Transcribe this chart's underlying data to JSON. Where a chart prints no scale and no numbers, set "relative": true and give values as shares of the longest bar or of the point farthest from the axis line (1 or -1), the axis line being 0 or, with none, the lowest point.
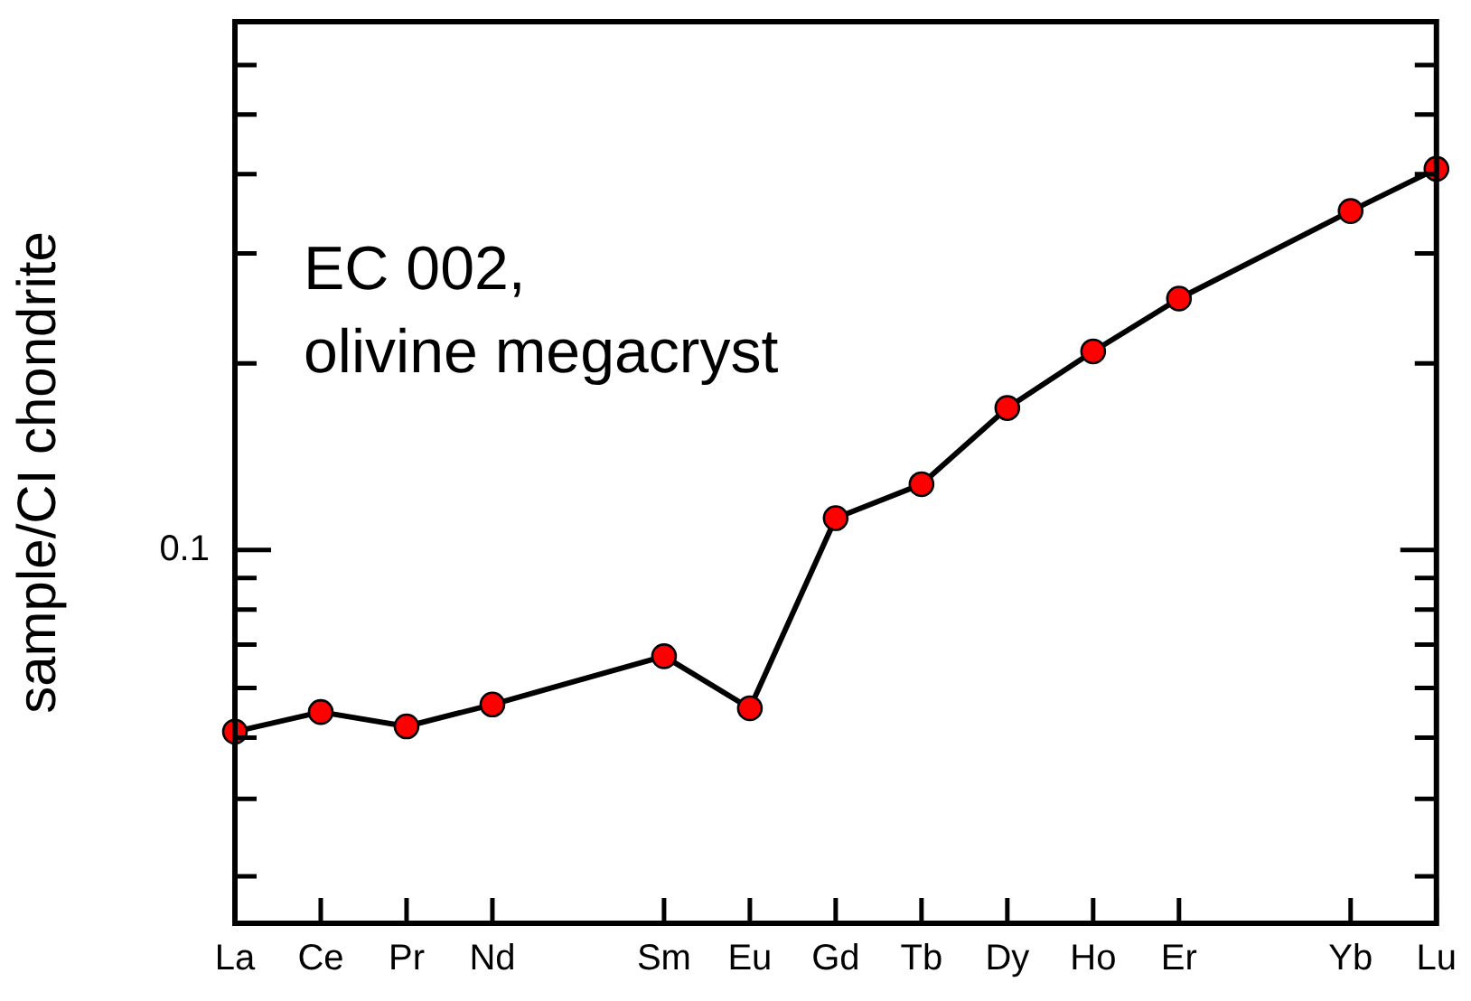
{
  "chart_data": {
    "type": "line",
    "ylabel": "sample/CI chondrite",
    "annotations": [
      "EC 002,\nolivine megacryst",
      "0.1"
    ],
    "categories": [
      "La",
      "Ce",
      "Pr",
      "Nd",
      null,
      "Sm",
      "Eu",
      "Gd",
      "Tb",
      "Dy",
      "Ho",
      "Er",
      null,
      "Yb",
      "Lu"
    ],
    "series": [
      {
        "color": "#ff0000",
        "values": [
          0.254,
          0.28,
          0.261,
          0.29,
          null,
          0.354,
          0.285,
          0.537,
          0.582,
          0.683,
          0.758,
          0.828,
          null,
          0.944,
          1
        ]
      }
    ],
    "relative": true,
    "grid": false,
    "legend": false,
    "marker": "circle",
    "line_style": "solid"
  }
}
